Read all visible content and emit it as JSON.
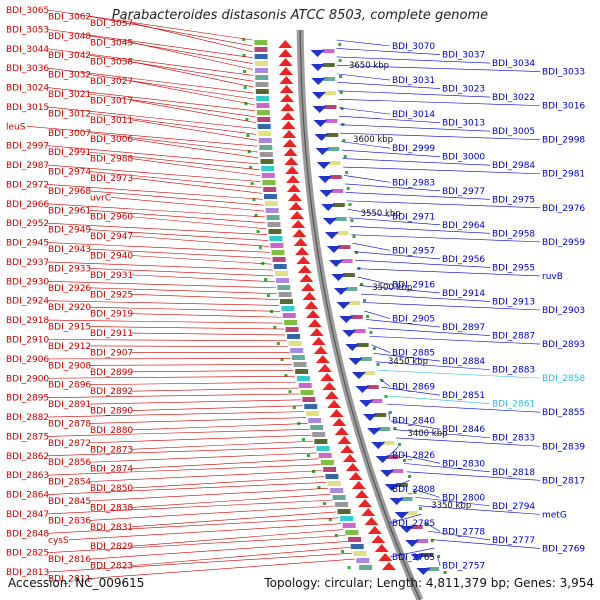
{
  "title": "Parabacteroides distasonis ATCC 8503, complete genome",
  "accession_text": "Accession: NC_009615",
  "topology_text": "Topology: circular; Length: 4,811,379 bp; Genes: 3,954",
  "colors": {
    "left_labels": "#cc0000",
    "right_labels": "#0000cc",
    "highlight": "#33bbdd",
    "backbone": "#888888"
  },
  "scale_labels": [
    "3650 kbp",
    "3600 kbp",
    "3550 kbp",
    "3500 kbp",
    "3450 kbp",
    "3400 kbp",
    "3350 kbp"
  ],
  "left_labels": [
    "BDI_3065",
    "BDI_3062",
    "BDI_3057",
    "BDI_3053",
    "BDI_3048",
    "BDI_3045",
    "BDI_3044",
    "BDI_3042",
    "BDI_3038",
    "BDI_3036",
    "BDI_3032",
    "BDI_3027",
    "BDI_3024",
    "BDI_3021",
    "BDI_3017",
    "BDI_3015",
    "BDI_3012",
    "BDI_3011",
    "leuS",
    "BDI_3007",
    "BDI_3006",
    "BDI_2997",
    "BDI_2991",
    "BDI_2988",
    "BDI_2987",
    "BDI_2974",
    "BDI_2973",
    "BDI_2972",
    "BDI_2968",
    "uvrC",
    "BDI_2966",
    "BDI_2961",
    "BDI_2960",
    "BDI_2952",
    "BDI_2949",
    "BDI_2947",
    "BDI_2945",
    "BDI_2943",
    "BDI_2940",
    "BDI_2937",
    "BDI_2933",
    "BDI_2931",
    "BDI_2930",
    "BDI_2926",
    "BDI_2925",
    "BDI_2924",
    "BDI_2920",
    "BDI_2919",
    "BDI_2918",
    "BDI_2915",
    "BDI_2911",
    "BDI_2910",
    "BDI_2912",
    "BDI_2907",
    "BDI_2906",
    "BDI_2908",
    "BDI_2899",
    "BDI_2900",
    "BDI_2896",
    "BDI_2892",
    "BDI_2895",
    "BDI_2891",
    "BDI_2890",
    "BDI_2882",
    "BDI_2878",
    "BDI_2880",
    "BDI_2875",
    "BDI_2872",
    "BDI_2873",
    "BDI_2862",
    "BDI_2856",
    "BDI_2874",
    "BDI_2863",
    "BDI_2854",
    "BDI_2850",
    "BDI_2864",
    "BDI_2845",
    "BDI_2838",
    "BDI_2847",
    "BDI_2836",
    "BDI_2831",
    "BDI_2848",
    "cysS",
    "BDI_2829",
    "BDI_2825",
    "BDI_2816",
    "BDI_2823",
    "BDI_2813",
    "BDI_2811"
  ],
  "right_labels": [
    "BDI_3070",
    "BDI_3037",
    "BDI_3034",
    "BDI_3033",
    "BDI_3031",
    "BDI_3023",
    "BDI_3022",
    "BDI_3016",
    "BDI_3014",
    "BDI_3013",
    "BDI_3005",
    "BDI_2998",
    "BDI_2999",
    "BDI_3000",
    "BDI_2984",
    "BDI_2981",
    "BDI_2983",
    "BDI_2977",
    "BDI_2975",
    "BDI_2976",
    "BDI_2971",
    "BDI_2964",
    "BDI_2958",
    "BDI_2959",
    "BDI_2957",
    "BDI_2956",
    "BDI_2955",
    "ruvB",
    "BDI_2916",
    "BDI_2914",
    "BDI_2913",
    "BDI_2903",
    "BDI_2905",
    "BDI_2897",
    "BDI_2887",
    "BDI_2893",
    "BDI_2885",
    "BDI_2884",
    "BDI_2883",
    "BDI_2858",
    "BDI_2869",
    "BDI_2851",
    "BDI_2861",
    "BDI_2855",
    "BDI_2840",
    "BDI_2846",
    "BDI_2833",
    "BDI_2839",
    "BDI_2826",
    "BDI_2830",
    "BDI_2818",
    "BDI_2817",
    "BDI_2808",
    "BDI_2800",
    "BDI_2794",
    "metG",
    "BDI_2785",
    "BDI_2778",
    "BDI_2777",
    "BDI_2769",
    "BDI_2765",
    "BDI_2757"
  ]
}
